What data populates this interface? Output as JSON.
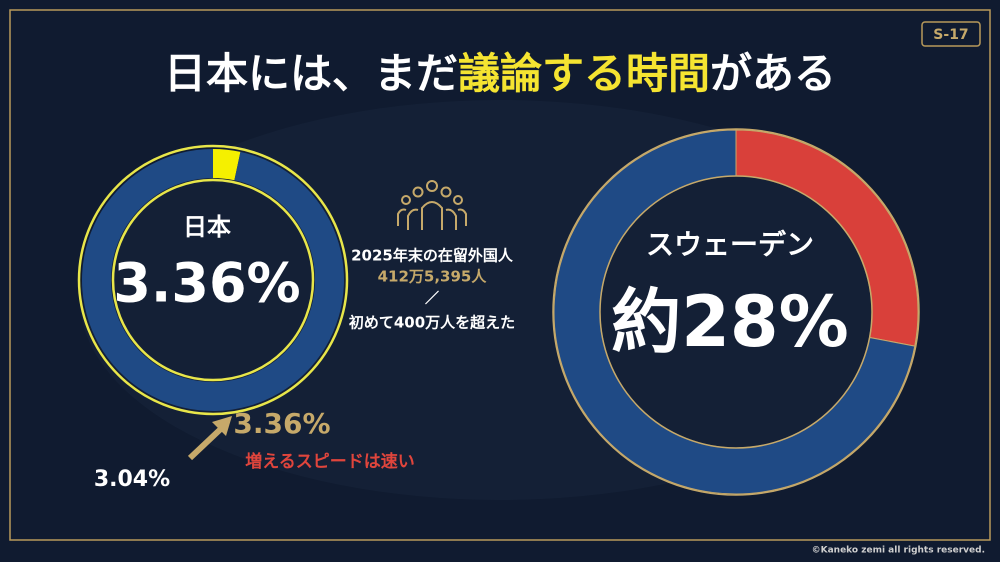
{
  "slide_id": "S-17",
  "title_segments": [
    {
      "text": "日本には、まだ",
      "color": "#ffffff"
    },
    {
      "text": "議論する時間",
      "color": "#f5e431"
    },
    {
      "text": "がある",
      "color": "#ffffff"
    }
  ],
  "chart_data": [
    {
      "type": "donut",
      "title": "日本",
      "values": [
        3.36,
        96.64
      ],
      "value_labels": [
        "3.36%",
        null
      ],
      "colors": [
        "#f5f000",
        "#1f4a85"
      ],
      "outline": "#e8e64a"
    },
    {
      "type": "donut",
      "title": "スウェーデン",
      "values": [
        28,
        72
      ],
      "value_labels": [
        "約28%",
        null
      ],
      "colors": [
        "#d9403a",
        "#1f4a85"
      ],
      "outline": "#c6a96a"
    }
  ],
  "foreign_residents": {
    "caption": "2025年末の在留外国人",
    "count": "412万5,395人",
    "separator": "／",
    "note": "初めて400万人を超えた"
  },
  "growth": {
    "from": "3.04%",
    "to": "3.36%",
    "note": "増えるスピードは速い"
  },
  "copyright": "©Kaneko zemi all rights reserved."
}
